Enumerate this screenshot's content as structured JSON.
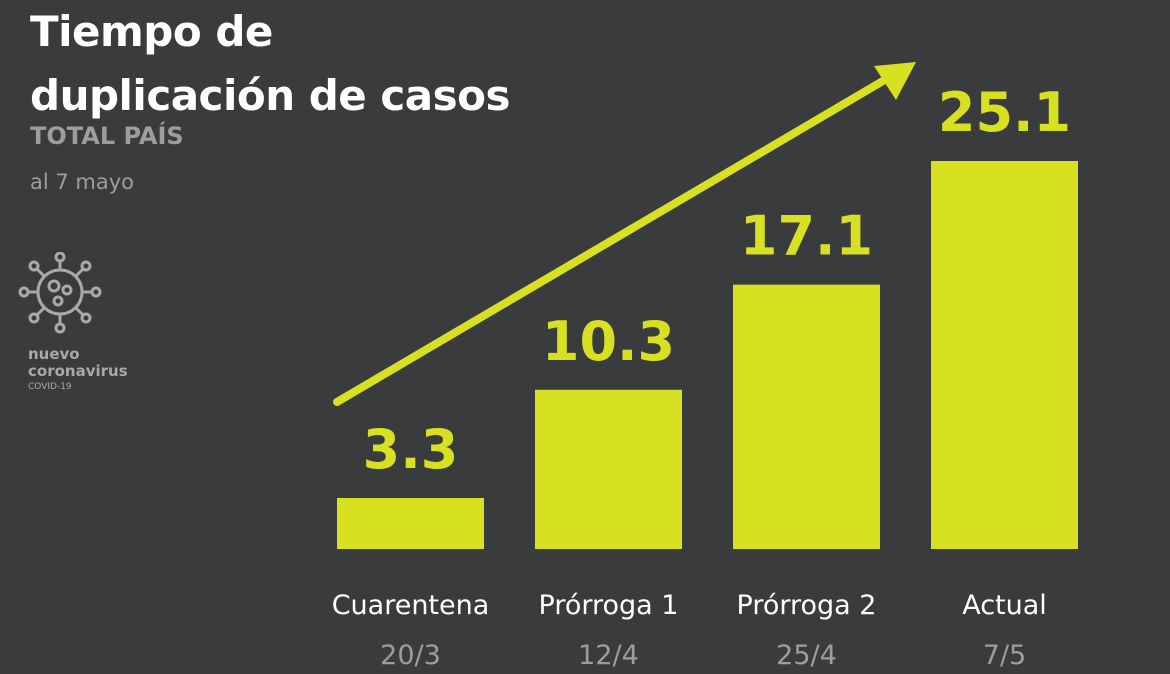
{
  "header": {
    "title_line1": "Tiempo de",
    "title_line2": "duplicación de casos",
    "subtitle": "TOTAL PAÍS",
    "date": "al 7 mayo"
  },
  "logo": {
    "line1": "nuevo",
    "line2": "coronavirus",
    "line3": "COVID-19",
    "icon": "virus-icon"
  },
  "colors": {
    "background": "#3a3b3d",
    "bar": "#d7e021",
    "label": "#ffffff",
    "date_label": "#9c9d9f"
  },
  "chart_data": {
    "type": "bar",
    "categories": [
      "Cuarentena",
      "Prórroga 1",
      "Prórroga 2",
      "Actual"
    ],
    "dates": [
      "20/3",
      "12/4",
      "25/4",
      "7/5"
    ],
    "values": [
      3.3,
      10.3,
      17.1,
      25.1
    ],
    "value_labels": [
      "3.3",
      "10.3",
      "17.1",
      "25.1"
    ],
    "title": "Tiempo de duplicación de casos",
    "xlabel": "",
    "ylabel": "",
    "grid": false,
    "trend_arrow": true
  }
}
